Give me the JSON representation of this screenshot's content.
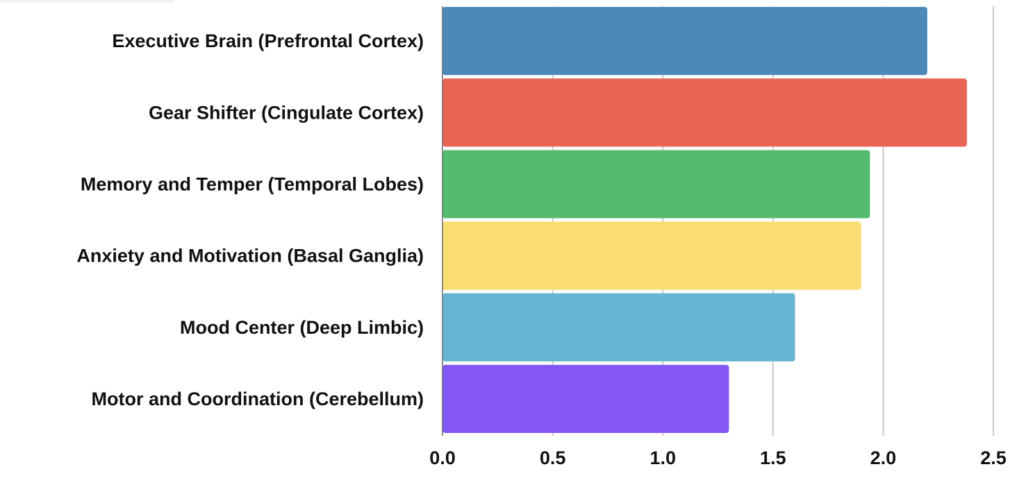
{
  "chart_data": {
    "type": "bar",
    "orientation": "horizontal",
    "title": "",
    "xlabel": "",
    "ylabel": "",
    "xlim": [
      0,
      2.5
    ],
    "x_ticks": [
      "0.0",
      "0.5",
      "1.0",
      "1.5",
      "2.0",
      "2.5"
    ],
    "grid": true,
    "categories": [
      "Executive Brain (Prefrontal Cortex)",
      "Gear Shifter (Cingulate Cortex)",
      "Memory and Temper (Temporal Lobes)",
      "Anxiety and Motivation (Basal Ganglia)",
      "Mood Center (Deep Limbic)",
      "Motor and Coordination (Cerebellum)"
    ],
    "values": [
      2.2,
      2.38,
      1.94,
      1.9,
      1.6,
      1.3
    ],
    "colors": [
      "#4a89b8",
      "#e96453",
      "#56bc6d",
      "#f9dd71",
      "#66b5d3",
      "#8356f5"
    ]
  }
}
